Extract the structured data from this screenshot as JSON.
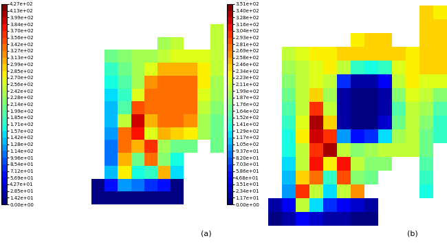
{
  "chart_data": [
    {
      "type": "heatmap",
      "xlabel": "(a)",
      "cells": [
        [
          null,
          null,
          null,
          null,
          null,
          null,
          null,
          null,
          null,
          250
        ],
        [
          null,
          null,
          null,
          null,
          null,
          240,
          250,
          null,
          null,
          250
        ],
        [
          null,
          200,
          220,
          230,
          240,
          250,
          260,
          260,
          260,
          250
        ],
        [
          null,
          180,
          210,
          230,
          260,
          300,
          310,
          300,
          280,
          250
        ],
        [
          null,
          160,
          190,
          230,
          320,
          340,
          340,
          330,
          270,
          240
        ],
        [
          null,
          150,
          180,
          260,
          330,
          340,
          340,
          335,
          260,
          230
        ],
        [
          null,
          140,
          190,
          350,
          330,
          340,
          340,
          330,
          250,
          220
        ],
        [
          null,
          130,
          250,
          390,
          300,
          330,
          330,
          320,
          240,
          210
        ],
        [
          null,
          120,
          330,
          380,
          260,
          300,
          290,
          280,
          230,
          200
        ],
        [
          null,
          110,
          340,
          300,
          360,
          230,
          200,
          200,
          null,
          200
        ],
        [
          null,
          100,
          300,
          200,
          330,
          220,
          170,
          null,
          null,
          null
        ],
        [
          null,
          130,
          280,
          160,
          180,
          300,
          150,
          null,
          null,
          null
        ],
        [
          0,
          60,
          120,
          100,
          80,
          60,
          0,
          null,
          null,
          null
        ],
        [
          0,
          0,
          0,
          0,
          0,
          0,
          0,
          null,
          null,
          null
        ]
      ],
      "colorbar": {
        "range": [
          0,
          427
        ],
        "ticks": [
          {
            "value": 0,
            "label": "0.00e+00"
          },
          {
            "value": 14.2,
            "label": "1.42e+01"
          },
          {
            "value": 28.5,
            "label": "2.85e+01"
          },
          {
            "value": 42.7,
            "label": "4.27e+01"
          },
          {
            "value": 56.9,
            "label": "5.69e+01"
          },
          {
            "value": 71.2,
            "label": "7.12e+01"
          },
          {
            "value": 85.4,
            "label": "8.54e+01"
          },
          {
            "value": 99.6,
            "label": "9.96e+01"
          },
          {
            "value": 114,
            "label": "1.14e+02"
          },
          {
            "value": 128,
            "label": "1.28e+02"
          },
          {
            "value": 142,
            "label": "1.42e+02"
          },
          {
            "value": 157,
            "label": "1.57e+02"
          },
          {
            "value": 171,
            "label": "1.71e+02"
          },
          {
            "value": 185,
            "label": "1.85e+02"
          },
          {
            "value": 199,
            "label": "1.99e+02"
          },
          {
            "value": 214,
            "label": "2.14e+02"
          },
          {
            "value": 228,
            "label": "2.28e+02"
          },
          {
            "value": 242,
            "label": "2.42e+02"
          },
          {
            "value": 256,
            "label": "2.56e+02"
          },
          {
            "value": 270,
            "label": "2.70e+02"
          },
          {
            "value": 285,
            "label": "2.85e+02"
          },
          {
            "value": 299,
            "label": "2.99e+02"
          },
          {
            "value": 313,
            "label": "3.13e+02"
          },
          {
            "value": 327,
            "label": "3.27e+02"
          },
          {
            "value": 342,
            "label": "3.42e+02"
          },
          {
            "value": 356,
            "label": "3.56e+02"
          },
          {
            "value": 370,
            "label": "3.70e+02"
          },
          {
            "value": 384,
            "label": "3.84e+02"
          },
          {
            "value": 399,
            "label": "3.99e+02"
          },
          {
            "value": 413,
            "label": "4.13e+02"
          },
          {
            "value": 427,
            "label": "4.27e+02"
          }
        ]
      }
    },
    {
      "type": "heatmap",
      "xlabel": "(b)",
      "cells": [
        [
          null,
          null,
          null,
          null,
          null,
          null,
          null,
          null,
          null,
          null,
          null,
          240,
          230
        ],
        [
          null,
          null,
          null,
          null,
          null,
          null,
          null,
          null,
          null,
          null,
          null,
          240,
          240
        ],
        [
          null,
          null,
          null,
          null,
          null,
          null,
          230,
          235,
          235,
          null,
          null,
          240,
          240
        ],
        [
          null,
          200,
          215,
          225,
          230,
          235,
          240,
          240,
          240,
          235,
          230,
          240,
          240
        ],
        [
          null,
          190,
          205,
          215,
          225,
          200,
          150,
          130,
          150,
          220,
          230,
          235,
          235
        ],
        [
          null,
          180,
          200,
          220,
          200,
          60,
          20,
          15,
          40,
          200,
          225,
          215,
          220
        ],
        [
          null,
          170,
          200,
          240,
          190,
          20,
          5,
          5,
          20,
          180,
          215,
          200,
          180
        ],
        [
          null,
          160,
          205,
          300,
          200,
          15,
          5,
          5,
          15,
          160,
          210,
          190,
          160
        ],
        [
          null,
          150,
          220,
          330,
          240,
          20,
          8,
          8,
          30,
          170,
          210,
          180,
          150
        ],
        [
          null,
          140,
          230,
          320,
          300,
          100,
          50,
          60,
          120,
          190,
          205,
          175,
          150
        ],
        [
          null,
          130,
          210,
          300,
          330,
          200,
          180,
          190,
          200,
          200,
          200,
          170,
          null
        ],
        [
          null,
          120,
          200,
          310,
          230,
          310,
          200,
          180,
          180,
          null,
          null,
          160,
          null
        ],
        [
          null,
          110,
          240,
          280,
          150,
          290,
          180,
          170,
          null,
          null,
          null,
          150,
          null
        ],
        [
          null,
          100,
          300,
          200,
          120,
          200,
          260,
          null,
          null,
          null,
          null,
          140,
          null
        ],
        [
          20,
          40,
          200,
          120,
          60,
          40,
          30,
          20,
          null,
          null,
          null,
          null,
          null
        ],
        [
          10,
          20,
          40,
          30,
          20,
          15,
          10,
          10,
          null,
          null,
          null,
          null,
          null
        ]
      ],
      "colorbar": {
        "range": [
          0,
          351
        ],
        "ticks": [
          {
            "value": 0,
            "label": "0.00e+00"
          },
          {
            "value": 11.7,
            "label": "1.17e+01"
          },
          {
            "value": 23.4,
            "label": "2.34e+01"
          },
          {
            "value": 35.1,
            "label": "3.51e+01"
          },
          {
            "value": 46.8,
            "label": "4.68e+01"
          },
          {
            "value": 58.6,
            "label": "5.86e+01"
          },
          {
            "value": 70.3,
            "label": "7.03e+01"
          },
          {
            "value": 82.0,
            "label": "8.20e+01"
          },
          {
            "value": 93.7,
            "label": "9.37e+01"
          },
          {
            "value": 105,
            "label": "1.05e+02"
          },
          {
            "value": 117,
            "label": "1.17e+02"
          },
          {
            "value": 129,
            "label": "1.29e+02"
          },
          {
            "value": 141,
            "label": "1.41e+02"
          },
          {
            "value": 152,
            "label": "1.52e+02"
          },
          {
            "value": 164,
            "label": "1.64e+02"
          },
          {
            "value": 176,
            "label": "1.76e+02"
          },
          {
            "value": 187,
            "label": "1.87e+02"
          },
          {
            "value": 199,
            "label": "1.99e+02"
          },
          {
            "value": 211,
            "label": "2.11e+02"
          },
          {
            "value": 223,
            "label": "2.23e+02"
          },
          {
            "value": 234,
            "label": "2.34e+02"
          },
          {
            "value": 246,
            "label": "2.46e+02"
          },
          {
            "value": 258,
            "label": "2.58e+02"
          },
          {
            "value": 269,
            "label": "2.69e+02"
          },
          {
            "value": 281,
            "label": "2.81e+02"
          },
          {
            "value": 293,
            "label": "2.93e+02"
          },
          {
            "value": 304,
            "label": "3.04e+02"
          },
          {
            "value": 316,
            "label": "3.16e+02"
          },
          {
            "value": 328,
            "label": "3.28e+02"
          },
          {
            "value": 340,
            "label": "3.40e+02"
          },
          {
            "value": 351,
            "label": "3.51e+02"
          }
        ]
      }
    }
  ]
}
